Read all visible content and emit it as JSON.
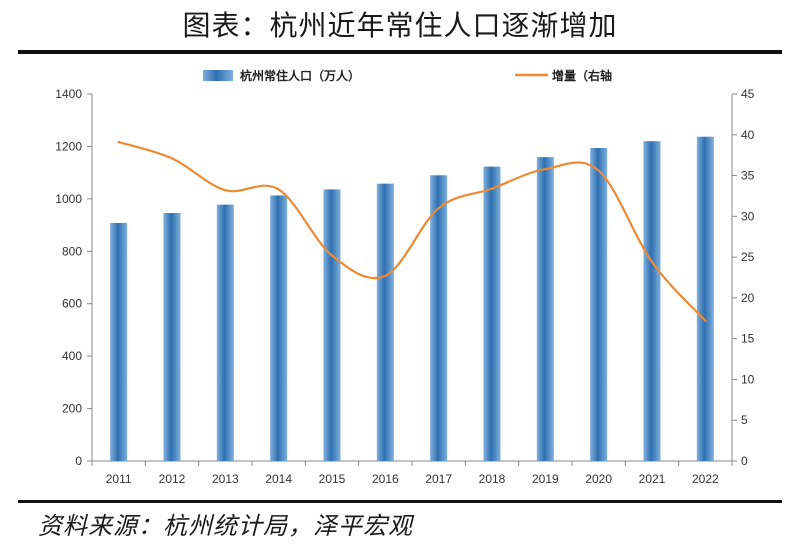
{
  "header": {
    "title": "图表：杭州近年常住人口逐渐增加"
  },
  "footer": {
    "source": "资料来源：杭州统计局，泽平宏观"
  },
  "colors": {
    "bar": "#4a86c0",
    "line": "#ee8a33"
  },
  "chart_data": {
    "type": "bar",
    "categories": [
      "2011",
      "2012",
      "2013",
      "2014",
      "2015",
      "2016",
      "2017",
      "2018",
      "2019",
      "2020",
      "2021",
      "2022"
    ],
    "series": [
      {
        "name": "杭州常住人口（万人）",
        "type": "bar",
        "axis": "left",
        "values": [
          908,
          946,
          978,
          1013,
          1036,
          1058,
          1090,
          1123,
          1159,
          1194,
          1220,
          1237
        ]
      },
      {
        "name": "增量（右轴",
        "type": "line",
        "axis": "right",
        "values": [
          39.1,
          37.1,
          33.2,
          33.3,
          25.2,
          22.7,
          31.0,
          33.4,
          35.8,
          35.6,
          24.4,
          17.2
        ]
      }
    ],
    "y_left": {
      "min": 0,
      "max": 1400,
      "ticks": [
        0,
        200,
        400,
        600,
        800,
        1000,
        1200,
        1400
      ]
    },
    "y_right": {
      "min": 0,
      "max": 45,
      "ticks": [
        0,
        5,
        10,
        15,
        20,
        25,
        30,
        35,
        40,
        45
      ]
    },
    "legend_position": "top"
  }
}
